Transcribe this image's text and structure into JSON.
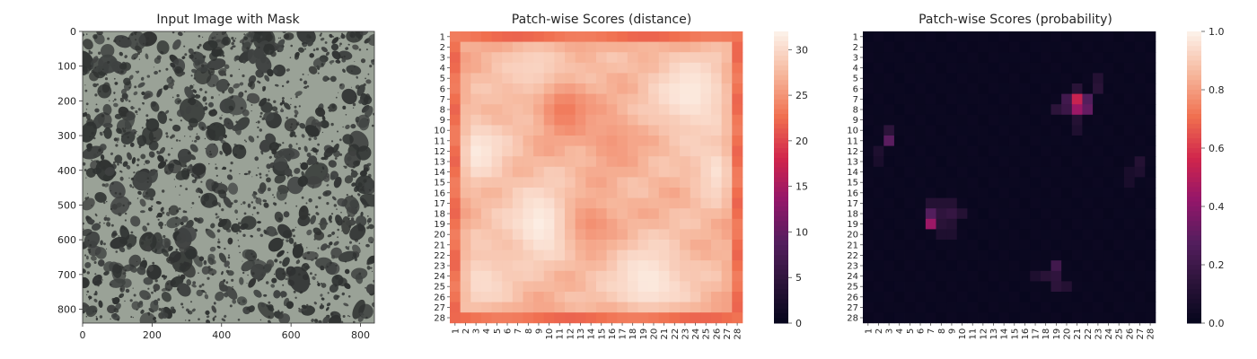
{
  "chart_data": [
    {
      "type": "heatmap",
      "title": "Input Image with Mask",
      "image_description": "grayscale speckled texture: light gray-green background with dark irregular blotches",
      "x_ticks": [
        "0",
        "200",
        "400",
        "600",
        "800"
      ],
      "y_ticks": [
        "0",
        "100",
        "200",
        "300",
        "400",
        "500",
        "600",
        "700",
        "800"
      ],
      "xlim": [
        0,
        840
      ],
      "ylim": [
        840,
        0
      ],
      "colors": {
        "background": "#9aa297",
        "blotch": "#3f4241",
        "spot": "#2f3231"
      }
    },
    {
      "type": "heatmap",
      "title": "Patch-wise Scores (distance)",
      "rows": 28,
      "cols": 28,
      "x_ticks": [
        "1",
        "2",
        "3",
        "4",
        "5",
        "6",
        "7",
        "8",
        "9",
        "10",
        "11",
        "12",
        "13",
        "14",
        "15",
        "16",
        "17",
        "18",
        "19",
        "20",
        "21",
        "22",
        "23",
        "24",
        "25",
        "26",
        "27",
        "28"
      ],
      "y_ticks": [
        "1",
        "2",
        "3",
        "4",
        "5",
        "6",
        "7",
        "8",
        "9",
        "10",
        "11",
        "12",
        "13",
        "14",
        "15",
        "16",
        "17",
        "18",
        "19",
        "20",
        "21",
        "22",
        "23",
        "24",
        "25",
        "26",
        "27",
        "28"
      ],
      "colorbar": {
        "min": 0,
        "max": 32,
        "ticks": [
          "0",
          "5",
          "10",
          "15",
          "20",
          "25",
          "30"
        ],
        "tick_values": [
          0,
          5,
          10,
          15,
          20,
          25,
          30
        ]
      },
      "base_value": 27.5,
      "border_value": 23,
      "hotspots": [
        {
          "row": 19,
          "col": 9.5,
          "value": 32,
          "radius": 2.6
        },
        {
          "row": 24.5,
          "col": 19.5,
          "value": 31.5,
          "radius": 2.8
        },
        {
          "row": 6.5,
          "col": 23.5,
          "value": 31.5,
          "radius": 2.8
        },
        {
          "row": 12,
          "col": 3,
          "value": 31.5,
          "radius": 2.2
        },
        {
          "row": 14,
          "col": 26.5,
          "value": 31,
          "radius": 2
        },
        {
          "row": 24.5,
          "col": 3.5,
          "value": 30.5,
          "radius": 2.2
        },
        {
          "row": 4.5,
          "col": 9,
          "value": 30,
          "radius": 2.5
        },
        {
          "row": 8,
          "col": 11.5,
          "value": 23.5,
          "radius": 1.8
        },
        {
          "row": 19,
          "col": 14,
          "value": 25,
          "radius": 1.8
        },
        {
          "row": 11,
          "col": 16,
          "value": 25.5,
          "radius": 1.8
        }
      ],
      "colors": [
        "#fcf0e7",
        "#f6b59a",
        "#f06f4f",
        "#d0254c",
        "#93166a",
        "#541e5e",
        "#2a1338",
        "#03051a"
      ]
    },
    {
      "type": "heatmap",
      "title": "Patch-wise Scores (probability)",
      "rows": 28,
      "cols": 28,
      "x_ticks": [
        "1",
        "2",
        "3",
        "4",
        "5",
        "6",
        "7",
        "8",
        "9",
        "10",
        "11",
        "12",
        "13",
        "14",
        "15",
        "16",
        "17",
        "18",
        "19",
        "20",
        "21",
        "22",
        "23",
        "24",
        "25",
        "26",
        "27",
        "28"
      ],
      "y_ticks": [
        "1",
        "2",
        "3",
        "4",
        "5",
        "6",
        "7",
        "8",
        "9",
        "10",
        "11",
        "12",
        "13",
        "14",
        "15",
        "16",
        "17",
        "18",
        "19",
        "20",
        "21",
        "22",
        "23",
        "24",
        "25",
        "26",
        "27",
        "28"
      ],
      "colorbar": {
        "min": 0,
        "max": 1,
        "ticks": [
          "0.0",
          "0.2",
          "0.4",
          "0.6",
          "0.8",
          "1.0"
        ],
        "tick_values": [
          0,
          0.2,
          0.4,
          0.6,
          0.8,
          1.0
        ]
      },
      "base_value": 0.02,
      "cells": [
        {
          "row": 7,
          "col": 21,
          "value": 0.55
        },
        {
          "row": 8,
          "col": 21,
          "value": 0.45
        },
        {
          "row": 8,
          "col": 22,
          "value": 0.32
        },
        {
          "row": 7,
          "col": 22,
          "value": 0.28
        },
        {
          "row": 7,
          "col": 20,
          "value": 0.22
        },
        {
          "row": 8,
          "col": 20,
          "value": 0.2
        },
        {
          "row": 8,
          "col": 19,
          "value": 0.15
        },
        {
          "row": 6,
          "col": 21,
          "value": 0.14
        },
        {
          "row": 6,
          "col": 23,
          "value": 0.14
        },
        {
          "row": 5,
          "col": 23,
          "value": 0.12
        },
        {
          "row": 9,
          "col": 21,
          "value": 0.12
        },
        {
          "row": 10,
          "col": 21,
          "value": 0.1
        },
        {
          "row": 11,
          "col": 3,
          "value": 0.3
        },
        {
          "row": 10,
          "col": 3,
          "value": 0.15
        },
        {
          "row": 12,
          "col": 2,
          "value": 0.1
        },
        {
          "row": 13,
          "col": 2,
          "value": 0.08
        },
        {
          "row": 19,
          "col": 7,
          "value": 0.45
        },
        {
          "row": 18,
          "col": 7,
          "value": 0.28
        },
        {
          "row": 17,
          "col": 7,
          "value": 0.12
        },
        {
          "row": 17,
          "col": 8,
          "value": 0.12
        },
        {
          "row": 17,
          "col": 9,
          "value": 0.12
        },
        {
          "row": 18,
          "col": 8,
          "value": 0.16
        },
        {
          "row": 18,
          "col": 9,
          "value": 0.18
        },
        {
          "row": 18,
          "col": 10,
          "value": 0.12
        },
        {
          "row": 19,
          "col": 8,
          "value": 0.14
        },
        {
          "row": 19,
          "col": 9,
          "value": 0.12
        },
        {
          "row": 20,
          "col": 8,
          "value": 0.1
        },
        {
          "row": 20,
          "col": 9,
          "value": 0.1
        },
        {
          "row": 23,
          "col": 19,
          "value": 0.22
        },
        {
          "row": 24,
          "col": 19,
          "value": 0.16
        },
        {
          "row": 24,
          "col": 18,
          "value": 0.14
        },
        {
          "row": 25,
          "col": 19,
          "value": 0.15
        },
        {
          "row": 25,
          "col": 20,
          "value": 0.12
        },
        {
          "row": 24,
          "col": 17,
          "value": 0.1
        },
        {
          "row": 13,
          "col": 27,
          "value": 0.12
        },
        {
          "row": 14,
          "col": 27,
          "value": 0.1
        },
        {
          "row": 14,
          "col": 26,
          "value": 0.08
        },
        {
          "row": 15,
          "col": 26,
          "value": 0.08
        }
      ],
      "colors": [
        "#fcf0e7",
        "#f6b59a",
        "#f06f4f",
        "#d0254c",
        "#93166a",
        "#541e5e",
        "#2a1338",
        "#03051a"
      ]
    }
  ]
}
